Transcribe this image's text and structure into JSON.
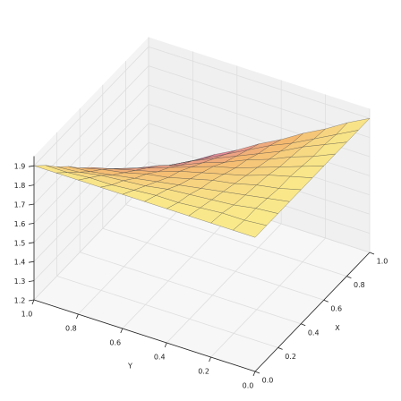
{
  "chart_data": {
    "type": "surface",
    "xlabel": "X",
    "ylabel": "Y",
    "x": [
      0,
      0.1,
      0.2,
      0.3,
      0.4,
      0.5,
      0.6,
      0.7,
      0.8,
      0.9,
      1
    ],
    "y": [
      0,
      0.1,
      0.2,
      0.3,
      0.4,
      0.5,
      0.6,
      0.7,
      0.8,
      0.9,
      1
    ],
    "z": [
      [
        1.9,
        1.9,
        1.9,
        1.9,
        1.9,
        1.9,
        1.9,
        1.9,
        1.9,
        1.9,
        1.9
      ],
      [
        1.9,
        1.89,
        1.89,
        1.88,
        1.87,
        1.87,
        1.86,
        1.85,
        1.85,
        1.84,
        1.84
      ],
      [
        1.9,
        1.89,
        1.87,
        1.86,
        1.85,
        1.84,
        1.82,
        1.81,
        1.8,
        1.78,
        1.77
      ],
      [
        1.9,
        1.88,
        1.86,
        1.84,
        1.82,
        1.8,
        1.78,
        1.76,
        1.74,
        1.72,
        1.71
      ],
      [
        1.9,
        1.87,
        1.85,
        1.82,
        1.8,
        1.77,
        1.74,
        1.72,
        1.69,
        1.67,
        1.64
      ],
      [
        1.9,
        1.87,
        1.84,
        1.8,
        1.77,
        1.74,
        1.71,
        1.67,
        1.64,
        1.61,
        1.58
      ],
      [
        1.9,
        1.86,
        1.82,
        1.78,
        1.74,
        1.71,
        1.67,
        1.63,
        1.59,
        1.55,
        1.51
      ],
      [
        1.9,
        1.85,
        1.81,
        1.76,
        1.72,
        1.67,
        1.63,
        1.58,
        1.54,
        1.49,
        1.45
      ],
      [
        1.9,
        1.85,
        1.8,
        1.74,
        1.69,
        1.64,
        1.59,
        1.54,
        1.48,
        1.43,
        1.38
      ],
      [
        1.9,
        1.84,
        1.78,
        1.72,
        1.67,
        1.61,
        1.55,
        1.49,
        1.43,
        1.37,
        1.32
      ],
      [
        1.9,
        1.84,
        1.77,
        1.71,
        1.64,
        1.58,
        1.51,
        1.45,
        1.38,
        1.32,
        1.25
      ]
    ],
    "xlim": [
      0,
      1
    ],
    "ylim": [
      0,
      1
    ],
    "zlim": [
      1.2,
      1.95
    ],
    "xticks": [
      {
        "value": 0,
        "label": "0.0"
      },
      0.2,
      0.4,
      0.6,
      0.8,
      {
        "value": 1,
        "label": "1.0"
      }
    ],
    "yticks": [
      {
        "value": 0,
        "label": "0.0"
      },
      0.2,
      0.4,
      0.6,
      0.8,
      {
        "value": 1,
        "label": "1.0"
      }
    ],
    "zticks": [
      1.2,
      1.3,
      1.4,
      1.5,
      1.6,
      1.7,
      1.8,
      1.9
    ],
    "colormap": [
      "#9b55d8",
      "#e283a0",
      "#f4b870",
      "#f9ea8c"
    ],
    "edge_color": "#3a3a3a",
    "grid": true
  }
}
